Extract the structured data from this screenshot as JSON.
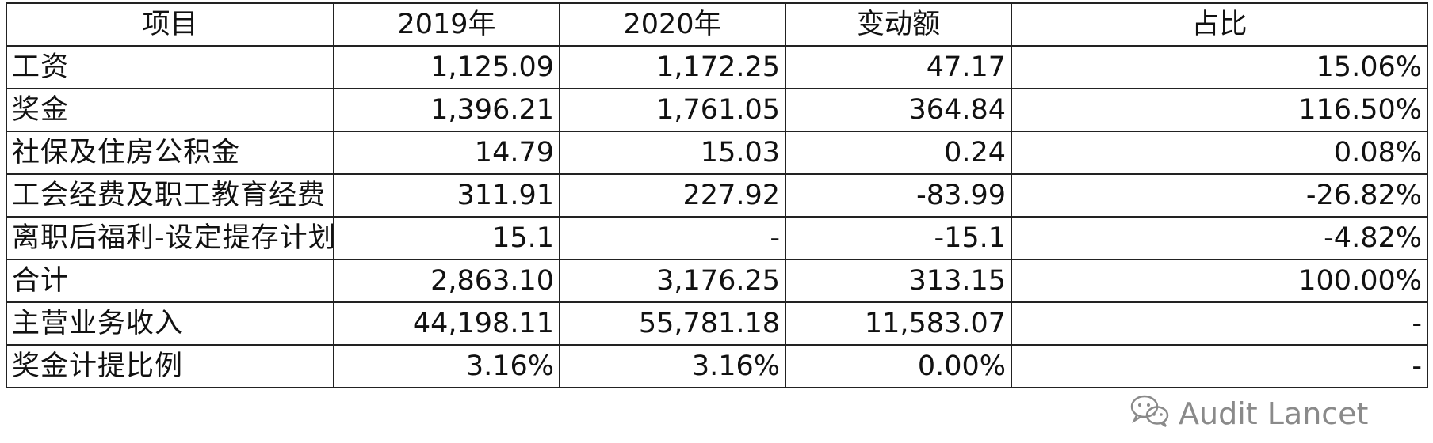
{
  "table": {
    "headers": [
      "项目",
      "2019年",
      "2020年",
      "变动额",
      "占比"
    ],
    "rows": [
      [
        "工资",
        "1,125.09",
        "1,172.25",
        "47.17",
        "15.06%"
      ],
      [
        "奖金",
        "1,396.21",
        "1,761.05",
        "364.84",
        "116.50%"
      ],
      [
        "社保及住房公积金",
        "14.79",
        "15.03",
        "0.24",
        "0.08%"
      ],
      [
        "工会经费及职工教育经费",
        "311.91",
        "227.92",
        "-83.99",
        "-26.82%"
      ],
      [
        "离职后福利-设定提存计划",
        "15.1",
        "-",
        "-15.1",
        "-4.82%"
      ],
      [
        "合计",
        "2,863.10",
        "3,176.25",
        "313.15",
        "100.00%"
      ],
      [
        "主营业务收入",
        "44,198.11",
        "55,781.18",
        "11,583.07",
        "-"
      ],
      [
        "奖金计提比例",
        "3.16%",
        "3.16%",
        "0.00%",
        "-"
      ]
    ]
  },
  "watermark": {
    "icon": "wechat-icon",
    "text": "Audit Lancet"
  }
}
